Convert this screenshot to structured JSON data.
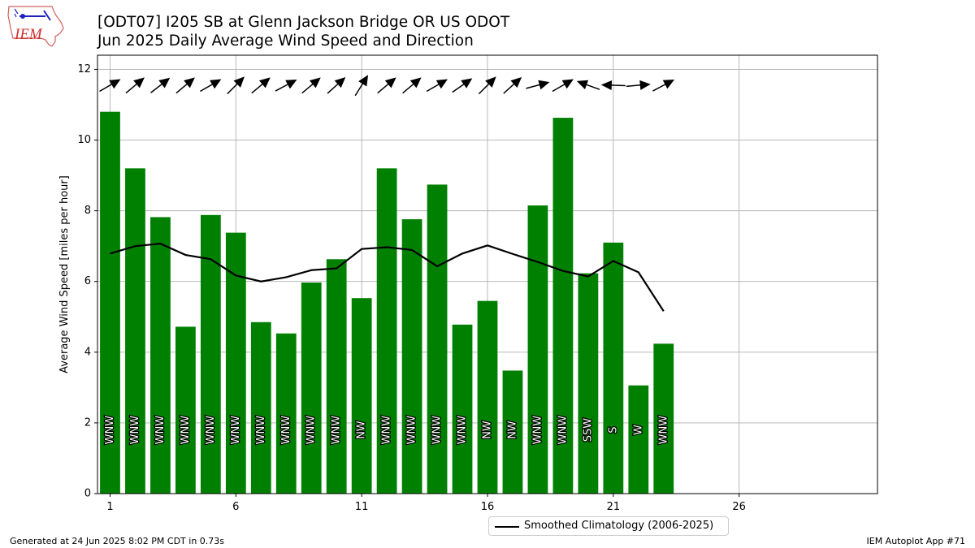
{
  "logo_text": "IEM",
  "title_line1": "[ODT07] I205 SB at Glenn Jackson Bridge  OR US ODOT",
  "title_line2": "Jun 2025 Daily Average Wind Speed and Direction",
  "footer_left": "Generated at 24 Jun 2025 8:02 PM CDT in 0.73s",
  "footer_right": "IEM Autoplot App #71",
  "colors": {
    "bars": "#008000",
    "climatology": "#000000",
    "grid": "#b0b0b0"
  },
  "chart_data": {
    "type": "bar",
    "ylabel": "Average Wind Speed [miles per hour]",
    "xlabel": "",
    "xlim": [
      0.5,
      31.5
    ],
    "ylim": [
      0,
      12.4
    ],
    "xticks": [
      1,
      6,
      11,
      16,
      21,
      26
    ],
    "yticks": [
      0,
      2,
      4,
      6,
      8,
      10,
      12
    ],
    "grid": true,
    "legend_position": "bottom-center",
    "days": [
      1,
      2,
      3,
      4,
      5,
      6,
      7,
      8,
      9,
      10,
      11,
      12,
      13,
      14,
      15,
      16,
      17,
      18,
      19,
      20,
      21,
      22,
      23
    ],
    "values": [
      10.8,
      9.2,
      7.82,
      4.72,
      7.88,
      7.38,
      4.85,
      4.53,
      5.97,
      6.63,
      5.53,
      9.2,
      7.76,
      8.74,
      4.78,
      5.45,
      3.48,
      8.15,
      10.63,
      6.23,
      7.1,
      3.06,
      4.24
    ],
    "directions": [
      "WNW",
      "WNW",
      "WNW",
      "WNW",
      "WNW",
      "WNW",
      "WNW",
      "WNW",
      "WNW",
      "WNW",
      "NW",
      "WNW",
      "WNW",
      "WNW",
      "WNW",
      "NW",
      "NW",
      "WNW",
      "WNW",
      "SSW",
      "S",
      "W",
      "WNW"
    ],
    "arrow_angles_deg": [
      -30,
      -40,
      -38,
      -40,
      -30,
      -45,
      -40,
      -28,
      -40,
      -42,
      -58,
      -40,
      -40,
      -30,
      -35,
      -45,
      -42,
      -15,
      -30,
      200,
      182,
      -5,
      -28
    ],
    "series": [
      {
        "name": "Smoothed Climatology (2006-2025)",
        "type": "line",
        "values": [
          6.79,
          7.0,
          7.07,
          6.75,
          6.63,
          6.17,
          6.0,
          6.12,
          6.32,
          6.37,
          6.92,
          6.97,
          6.89,
          6.43,
          6.79,
          7.02,
          6.78,
          6.55,
          6.3,
          6.14,
          6.58,
          6.26,
          5.16
        ]
      }
    ]
  }
}
